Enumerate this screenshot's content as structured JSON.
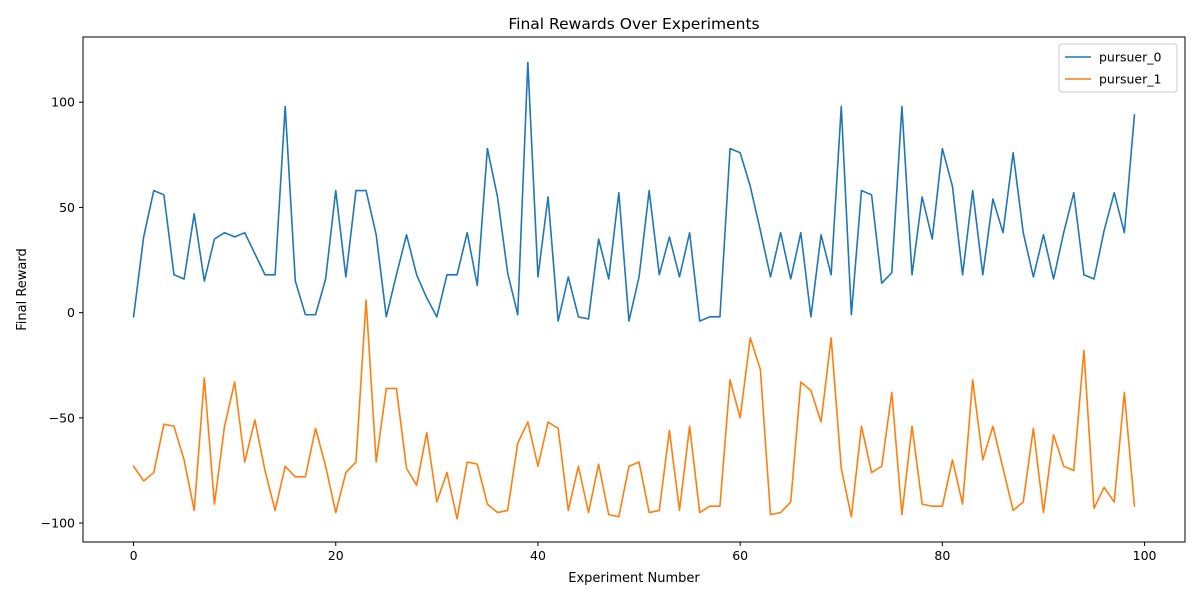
{
  "chart_data": {
    "type": "line",
    "title": "Final Rewards Over Experiments",
    "xlabel": "Experiment Number",
    "ylabel": "Final Reward",
    "xlim": [
      -5,
      104
    ],
    "ylim": [
      -109,
      131
    ],
    "xticks": [
      0,
      20,
      40,
      60,
      80,
      100
    ],
    "yticks": [
      -100,
      -50,
      0,
      50,
      100
    ],
    "ytick_labels": [
      "−100",
      "−50",
      "0",
      "50",
      "100"
    ],
    "grid": false,
    "legend_position": "top-right",
    "series": [
      {
        "name": "pursuer_0",
        "color": "#1f77b4",
        "values": [
          -2,
          36,
          58,
          56,
          18,
          16,
          47,
          15,
          35,
          38,
          36,
          38,
          28,
          18,
          18,
          98,
          15,
          -1,
          -1,
          16,
          58,
          17,
          58,
          58,
          37,
          -2,
          18,
          37,
          18,
          7,
          -2,
          18,
          18,
          38,
          13,
          78,
          55,
          19,
          -1,
          119,
          17,
          55,
          -4,
          17,
          -2,
          -3,
          35,
          16,
          57,
          -4,
          17,
          58,
          18,
          36,
          17,
          38,
          -4,
          -2,
          -2,
          78,
          76,
          60,
          39,
          17,
          38,
          16,
          38,
          -2,
          37,
          18,
          98,
          -1,
          58,
          56,
          14,
          19,
          98,
          18,
          55,
          35,
          78,
          60,
          18,
          58,
          18,
          54,
          38,
          76,
          38,
          17,
          37,
          16,
          38,
          57,
          18,
          16,
          39,
          57,
          38,
          94
        ]
      },
      {
        "name": "pursuer_1",
        "color": "#ff7f0e",
        "values": [
          -73,
          -80,
          -76,
          -53,
          -54,
          -70,
          -94,
          -31,
          -91,
          -54,
          -33,
          -71,
          -51,
          -75,
          -94,
          -73,
          -78,
          -78,
          -55,
          -73,
          -95,
          -76,
          -71,
          6,
          -71,
          -36,
          -36,
          -74,
          -82,
          -57,
          -90,
          -76,
          -98,
          -71,
          -72,
          -91,
          -95,
          -94,
          -62,
          -52,
          -73,
          -52,
          -55,
          -94,
          -73,
          -95,
          -72,
          -96,
          -97,
          -73,
          -71,
          -95,
          -94,
          -56,
          -94,
          -54,
          -95,
          -92,
          -92,
          -32,
          -50,
          -12,
          -27,
          -96,
          -95,
          -90,
          -33,
          -37,
          -52,
          -12,
          -74,
          -97,
          -54,
          -76,
          -73,
          -38,
          -96,
          -54,
          -91,
          -92,
          -92,
          -70,
          -91,
          -32,
          -70,
          -54,
          -74,
          -94,
          -90,
          -55,
          -95,
          -58,
          -73,
          -75,
          -18,
          -93,
          -83,
          -90,
          -38,
          -92
        ]
      }
    ]
  }
}
